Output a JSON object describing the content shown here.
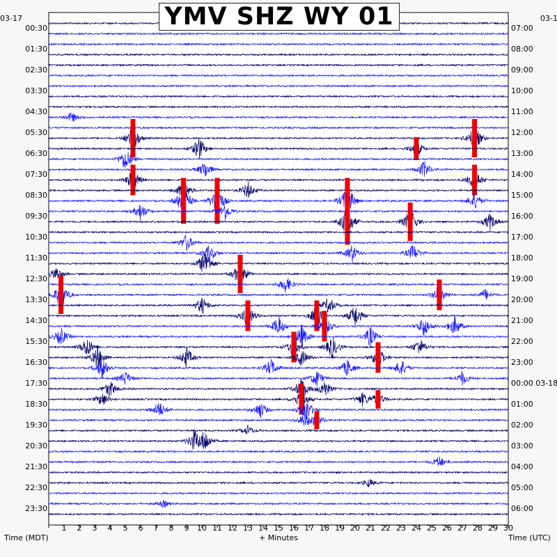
{
  "title": "YMV SHZ WY 01",
  "date_left": "03-17",
  "date_right": "03-1",
  "date_right_mid": "03-18",
  "xlabel": "+ Minutes",
  "left_axis_label": "Time (MDT)",
  "right_axis_label": "Time (UTC)",
  "colors": {
    "trace_dark": "#000066",
    "trace_light": "#1515ff",
    "clip": "#ee0000",
    "background": "#ffffff",
    "page": "#f7f7f7"
  },
  "chart_data": {
    "type": "line",
    "subtype": "helicorder",
    "title": "YMV SHZ WY 01",
    "xlabel": "+ Minutes",
    "xlim": [
      0,
      30
    ],
    "x_ticks": [
      "1",
      "2",
      "3",
      "4",
      "5",
      "6",
      "7",
      "8",
      "9",
      "10",
      "11",
      "12",
      "13",
      "14",
      "15",
      "16",
      "17",
      "18",
      "19",
      "20",
      "21",
      "22",
      "23",
      "24",
      "25",
      "26",
      "27",
      "28",
      "29",
      "30"
    ],
    "rows_per_hour": 2,
    "num_rows": 48,
    "left_tick_labels": [
      "00:30",
      "01:30",
      "02:30",
      "03:30",
      "04:30",
      "05:30",
      "06:30",
      "07:30",
      "08:30",
      "09:30",
      "10:30",
      "11:30",
      "12:30",
      "13:30",
      "14:30",
      "15:30",
      "16:30",
      "17:30",
      "18:30",
      "19:30",
      "20:30",
      "21:30",
      "22:30",
      "23:30"
    ],
    "right_tick_labels": [
      "07:00",
      "08:00",
      "09:00",
      "10:00",
      "11:00",
      "12:00",
      "13:00",
      "14:00",
      "15:00",
      "16:00",
      "17:00",
      "18:00",
      "19:00",
      "20:00",
      "21:00",
      "22:00",
      "23:00",
      "00:00 03-18",
      "01:00",
      "02:00",
      "03:00",
      "04:00",
      "05:00",
      "06:00"
    ],
    "events": [
      {
        "row": 9,
        "minute": 1.5,
        "amp": 0.9
      },
      {
        "row": 11,
        "minute": 5.5,
        "amp": 2.5,
        "clip": true
      },
      {
        "row": 11,
        "minute": 27.8,
        "amp": 2.5,
        "clip": true
      },
      {
        "row": 12,
        "minute": 9.8,
        "amp": 2.0
      },
      {
        "row": 12,
        "minute": 24.0,
        "amp": 1.5,
        "clip": true
      },
      {
        "row": 13,
        "minute": 5.0,
        "amp": 2.0
      },
      {
        "row": 14,
        "minute": 10.2,
        "amp": 1.5
      },
      {
        "row": 14,
        "minute": 24.5,
        "amp": 1.5
      },
      {
        "row": 15,
        "minute": 5.5,
        "amp": 2.0,
        "clip": true
      },
      {
        "row": 15,
        "minute": 27.8,
        "amp": 2.0,
        "clip": true
      },
      {
        "row": 16,
        "minute": 8.8,
        "amp": 2.0
      },
      {
        "row": 16,
        "minute": 13.0,
        "amp": 1.5
      },
      {
        "row": 17,
        "minute": 8.8,
        "amp": 3.0,
        "clip": true
      },
      {
        "row": 17,
        "minute": 11.0,
        "amp": 3.0,
        "clip": true
      },
      {
        "row": 17,
        "minute": 19.5,
        "amp": 3.0,
        "clip": true
      },
      {
        "row": 17,
        "minute": 27.8,
        "amp": 1.5
      },
      {
        "row": 18,
        "minute": 6.0,
        "amp": 1.5
      },
      {
        "row": 18,
        "minute": 11.5,
        "amp": 1.5
      },
      {
        "row": 19,
        "minute": 19.5,
        "amp": 3.0,
        "clip": true
      },
      {
        "row": 19,
        "minute": 23.6,
        "amp": 2.5,
        "clip": true
      },
      {
        "row": 19,
        "minute": 28.8,
        "amp": 1.5
      },
      {
        "row": 21,
        "minute": 9.0,
        "amp": 1.5
      },
      {
        "row": 22,
        "minute": 10.5,
        "amp": 1.5
      },
      {
        "row": 22,
        "minute": 19.8,
        "amp": 1.5
      },
      {
        "row": 22,
        "minute": 23.8,
        "amp": 1.5
      },
      {
        "row": 23,
        "minute": 10.2,
        "amp": 2.5
      },
      {
        "row": 24,
        "minute": 0.5,
        "amp": 1.2
      },
      {
        "row": 24,
        "minute": 12.5,
        "amp": 2.5,
        "clip": true
      },
      {
        "row": 25,
        "minute": 15.5,
        "amp": 1.5
      },
      {
        "row": 26,
        "minute": 0.8,
        "amp": 2.5,
        "clip": true
      },
      {
        "row": 26,
        "minute": 25.5,
        "amp": 2.0,
        "clip": true
      },
      {
        "row": 26,
        "minute": 28.5,
        "amp": 1.0
      },
      {
        "row": 27,
        "minute": 10.0,
        "amp": 1.5
      },
      {
        "row": 27,
        "minute": 18.3,
        "amp": 1.5
      },
      {
        "row": 28,
        "minute": 13.0,
        "amp": 2.0,
        "clip": true
      },
      {
        "row": 28,
        "minute": 17.5,
        "amp": 2.0,
        "clip": true
      },
      {
        "row": 28,
        "minute": 20.0,
        "amp": 2.0
      },
      {
        "row": 29,
        "minute": 15.0,
        "amp": 1.8
      },
      {
        "row": 29,
        "minute": 18.0,
        "amp": 2.0,
        "clip": true
      },
      {
        "row": 29,
        "minute": 24.5,
        "amp": 1.8
      },
      {
        "row": 29,
        "minute": 26.5,
        "amp": 1.8
      },
      {
        "row": 30,
        "minute": 0.8,
        "amp": 1.5
      },
      {
        "row": 30,
        "minute": 16.5,
        "amp": 2.0
      },
      {
        "row": 30,
        "minute": 21.0,
        "amp": 1.8
      },
      {
        "row": 31,
        "minute": 2.5,
        "amp": 1.8
      },
      {
        "row": 31,
        "minute": 16.0,
        "amp": 2.0,
        "clip": true
      },
      {
        "row": 31,
        "minute": 18.5,
        "amp": 2.0
      },
      {
        "row": 31,
        "minute": 24.2,
        "amp": 1.5
      },
      {
        "row": 32,
        "minute": 3.2,
        "amp": 2.0
      },
      {
        "row": 32,
        "minute": 9.0,
        "amp": 1.8
      },
      {
        "row": 32,
        "minute": 16.5,
        "amp": 1.5
      },
      {
        "row": 32,
        "minute": 21.5,
        "amp": 2.0,
        "clip": true
      },
      {
        "row": 33,
        "minute": 3.5,
        "amp": 1.8
      },
      {
        "row": 33,
        "minute": 14.5,
        "amp": 1.5
      },
      {
        "row": 33,
        "minute": 19.5,
        "amp": 1.5
      },
      {
        "row": 33,
        "minute": 23.0,
        "amp": 1.5
      },
      {
        "row": 34,
        "minute": 5.0,
        "amp": 1.2
      },
      {
        "row": 34,
        "minute": 17.5,
        "amp": 1.5
      },
      {
        "row": 34,
        "minute": 27.0,
        "amp": 1.2
      },
      {
        "row": 35,
        "minute": 4.0,
        "amp": 1.5
      },
      {
        "row": 35,
        "minute": 16.5,
        "amp": 2.0
      },
      {
        "row": 35,
        "minute": 18.0,
        "amp": 1.5
      },
      {
        "row": 36,
        "minute": 3.5,
        "amp": 1.2
      },
      {
        "row": 36,
        "minute": 16.5,
        "amp": 2.0,
        "clip": true
      },
      {
        "row": 36,
        "minute": 20.5,
        "amp": 1.2
      },
      {
        "row": 36,
        "minute": 21.5,
        "amp": 1.2,
        "clip": true
      },
      {
        "row": 37,
        "minute": 7.2,
        "amp": 1.5
      },
      {
        "row": 37,
        "minute": 13.8,
        "amp": 1.5
      },
      {
        "row": 37,
        "minute": 16.8,
        "amp": 2.0
      },
      {
        "row": 38,
        "minute": 16.7,
        "amp": 1.2
      },
      {
        "row": 38,
        "minute": 17.5,
        "amp": 1.2,
        "clip": true
      },
      {
        "row": 39,
        "minute": 13.0,
        "amp": 0.8
      },
      {
        "row": 40,
        "minute": 9.5,
        "amp": 1.8
      },
      {
        "row": 40,
        "minute": 10.2,
        "amp": 1.8
      },
      {
        "row": 42,
        "minute": 25.5,
        "amp": 1.0
      },
      {
        "row": 44,
        "minute": 20.9,
        "amp": 0.7
      },
      {
        "row": 46,
        "minute": 7.5,
        "amp": 0.6
      }
    ]
  }
}
